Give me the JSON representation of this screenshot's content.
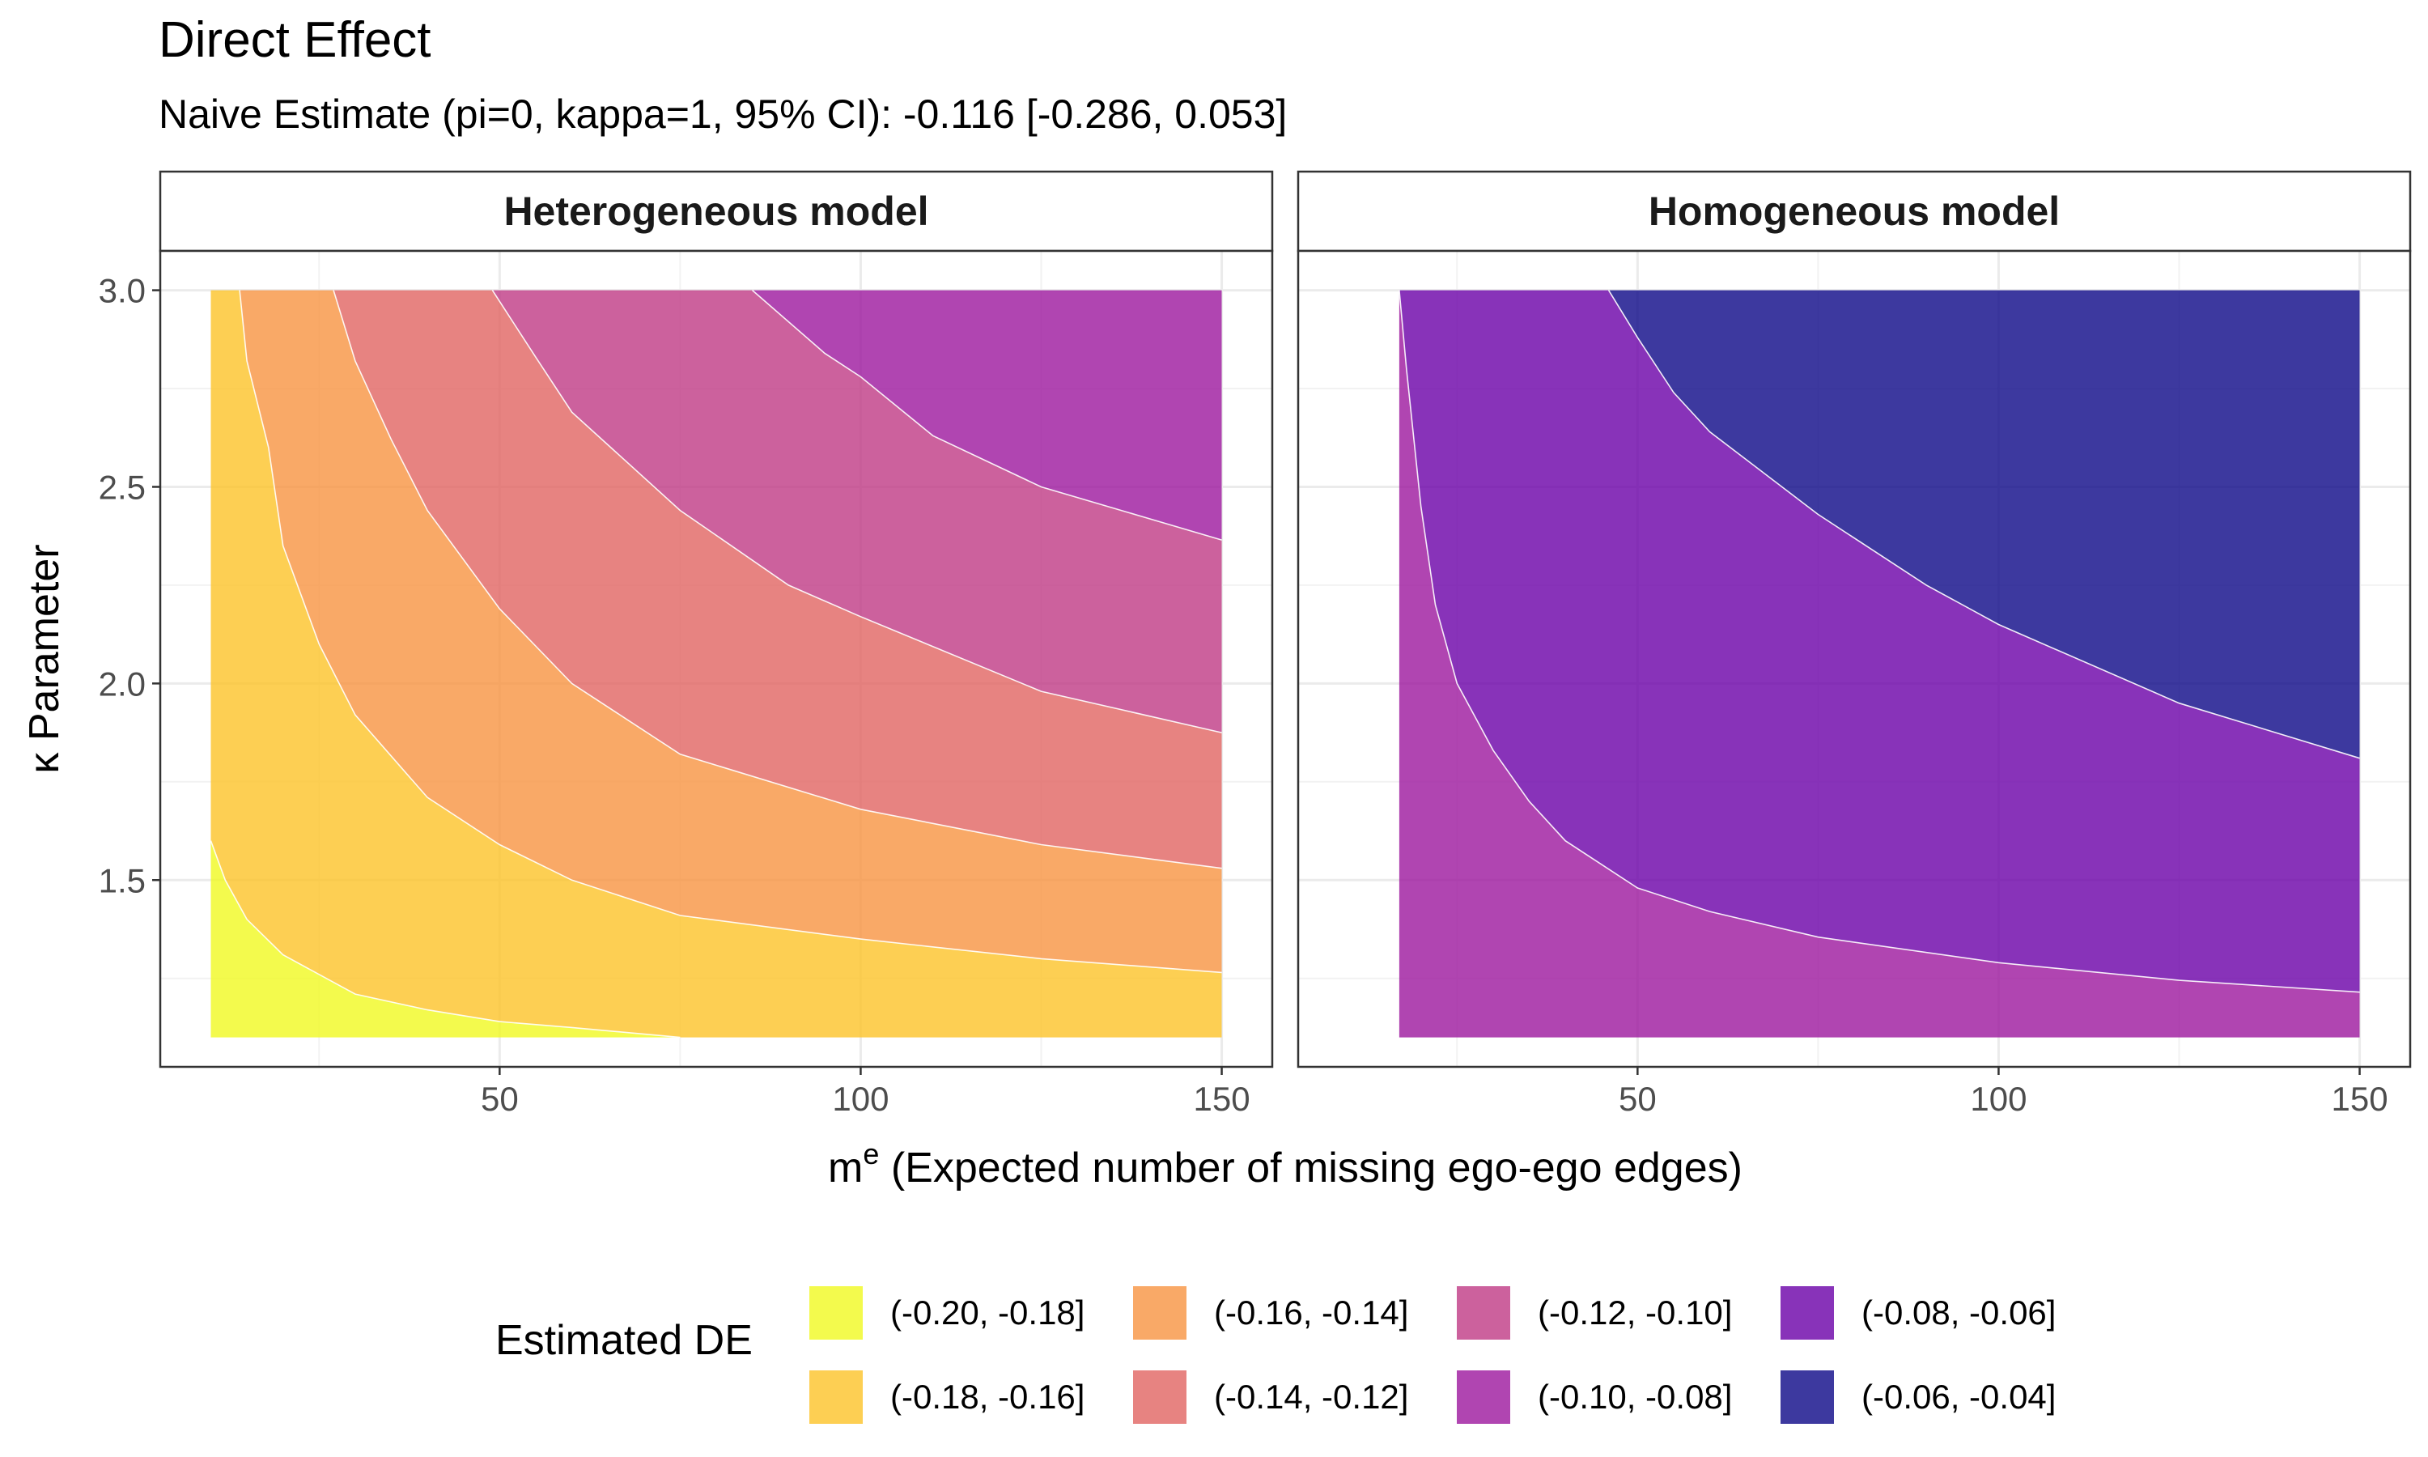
{
  "title": "Direct Effect",
  "subtitle": "Naive Estimate (pi=0, kappa=1, 95% CI): -0.116 [-0.286, 0.053]",
  "legend": {
    "title": "Estimated DE",
    "items": [
      {
        "label": "(-0.20, -0.18]",
        "color": "#F0F921"
      },
      {
        "label": "(-0.18, -0.16]",
        "color": "#FDC328"
      },
      {
        "label": "(-0.16, -0.14]",
        "color": "#F89441"
      },
      {
        "label": "(-0.14, -0.12]",
        "color": "#E16462"
      },
      {
        "label": "(-0.12, -0.10]",
        "color": "#BF3984"
      },
      {
        "label": "(-0.10, -0.08]",
        "color": "#9C179E"
      },
      {
        "label": "(-0.08, -0.06]",
        "color": "#6A00A8"
      },
      {
        "label": "(-0.06, -0.04]",
        "color": "#0D0887"
      }
    ]
  },
  "chart_data": {
    "type": "filled contour",
    "xlabel_main": "m",
    "xlabel_sup": "e",
    "xlabel_rest": " (Expected number of missing ego-ego edges)",
    "ylabel": "κ Parameter",
    "xlim": [
      3,
      157
    ],
    "ylim": [
      1.025,
      3.1
    ],
    "x_range": [
      10,
      150
    ],
    "y_range": [
      1.1,
      3.0
    ],
    "xticks": [
      {
        "value": 50,
        "label": "50"
      },
      {
        "value": 100,
        "label": "100"
      },
      {
        "value": 150,
        "label": "150"
      }
    ],
    "yticks": [
      {
        "value": 1.5,
        "label": "1.5"
      },
      {
        "value": 2.0,
        "label": "2.0"
      },
      {
        "value": 2.5,
        "label": "2.5"
      },
      {
        "value": 3.0,
        "label": "3.0"
      }
    ],
    "fill_opacity": 0.8,
    "panels": [
      {
        "name": "Heterogeneous model",
        "x_start": 10,
        "levels": [
          "(-0.20, -0.18]",
          "(-0.18, -0.16]",
          "(-0.16, -0.14]",
          "(-0.14, -0.12]",
          "(-0.12, -0.10]",
          "(-0.10, -0.08]"
        ],
        "boundaries": [
          [
            [
              10,
              1.6
            ],
            [
              12,
              1.5
            ],
            [
              15,
              1.4
            ],
            [
              20,
              1.31
            ],
            [
              30,
              1.21
            ],
            [
              40,
              1.17
            ],
            [
              50,
              1.14
            ],
            [
              60,
              1.125
            ],
            [
              75,
              1.1
            ]
          ],
          [
            [
              14,
              3.0
            ],
            [
              15,
              2.82
            ],
            [
              18,
              2.6
            ],
            [
              20,
              2.35
            ],
            [
              25,
              2.1
            ],
            [
              30,
              1.92
            ],
            [
              40,
              1.71
            ],
            [
              50,
              1.59
            ],
            [
              60,
              1.5
            ],
            [
              75,
              1.41
            ],
            [
              100,
              1.35
            ],
            [
              125,
              1.3
            ],
            [
              150,
              1.265
            ]
          ],
          [
            [
              27,
              3.0
            ],
            [
              30,
              2.82
            ],
            [
              35,
              2.62
            ],
            [
              40,
              2.44
            ],
            [
              50,
              2.19
            ],
            [
              60,
              2.0
            ],
            [
              75,
              1.82
            ],
            [
              100,
              1.68
            ],
            [
              125,
              1.59
            ],
            [
              150,
              1.53
            ]
          ],
          [
            [
              49,
              3.0
            ],
            [
              55,
              2.83
            ],
            [
              60,
              2.69
            ],
            [
              75,
              2.44
            ],
            [
              90,
              2.25
            ],
            [
              100,
              2.17
            ],
            [
              125,
              1.98
            ],
            [
              150,
              1.875
            ]
          ],
          [
            [
              85,
              3.0
            ],
            [
              95,
              2.84
            ],
            [
              100,
              2.78
            ],
            [
              110,
              2.63
            ],
            [
              125,
              2.5
            ],
            [
              150,
              2.365
            ]
          ]
        ]
      },
      {
        "name": "Homogeneous model",
        "x_start": 17,
        "levels": [
          "(-0.10, -0.08]",
          "(-0.08, -0.06]",
          "(-0.06, -0.04]"
        ],
        "boundaries": [
          [
            [
              17,
              3.0
            ],
            [
              18,
              2.8
            ],
            [
              20,
              2.45
            ],
            [
              22,
              2.2
            ],
            [
              25,
              2.0
            ],
            [
              30,
              1.83
            ],
            [
              35,
              1.7
            ],
            [
              40,
              1.6
            ],
            [
              50,
              1.48
            ],
            [
              60,
              1.42
            ],
            [
              75,
              1.355
            ],
            [
              100,
              1.29
            ],
            [
              125,
              1.245
            ],
            [
              150,
              1.215
            ]
          ],
          [
            [
              46,
              3.0
            ],
            [
              50,
              2.88
            ],
            [
              55,
              2.74
            ],
            [
              60,
              2.64
            ],
            [
              75,
              2.43
            ],
            [
              90,
              2.25
            ],
            [
              100,
              2.15
            ],
            [
              125,
              1.95
            ],
            [
              150,
              1.81
            ]
          ]
        ]
      }
    ]
  }
}
